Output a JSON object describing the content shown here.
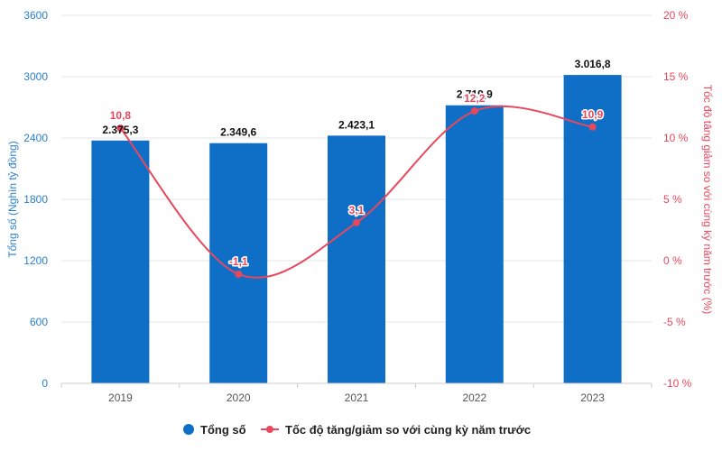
{
  "chart_data": {
    "type": "bar",
    "categories": [
      "2019",
      "2020",
      "2021",
      "2022",
      "2023"
    ],
    "series": [
      {
        "name": "Tổng số",
        "type": "bar",
        "axis": "left",
        "values": [
          2375.3,
          2349.6,
          2423.1,
          2719.9,
          3016.8
        ],
        "labels": [
          "2.375,3",
          "2.349,6",
          "2.423,1",
          "2.719,9",
          "3.016,8"
        ]
      },
      {
        "name": "Tốc độ tăng/giảm so với cùng kỳ năm trước",
        "type": "line",
        "axis": "right",
        "values": [
          10.8,
          -1.1,
          3.1,
          12.2,
          10.9
        ],
        "labels": [
          "10,8",
          "-1,1",
          "3,1",
          "12,2",
          "10,9"
        ]
      }
    ],
    "ylabel": "Tổng số (Nghìn tỷ đồng)",
    "y2label": "Tốc độ tăng giảm so với cùng kỳ năm trước (%)",
    "ylim": [
      0,
      3600
    ],
    "y2lim": [
      -10,
      20
    ],
    "yticks": [
      "0",
      "600",
      "1200",
      "1800",
      "2400",
      "3000",
      "3600"
    ],
    "y2ticks": [
      "-10 %",
      "-5 %",
      "0 %",
      "5 %",
      "10 %",
      "15 %",
      "20 %"
    ],
    "grid": true,
    "legend_position": "bottom-center",
    "colors": {
      "bar": "#0f6fc6",
      "line": "#e8475c",
      "left_axis": "#2a7fd1",
      "right_axis": "#e8475c",
      "grid": "#e6e6e6"
    }
  }
}
